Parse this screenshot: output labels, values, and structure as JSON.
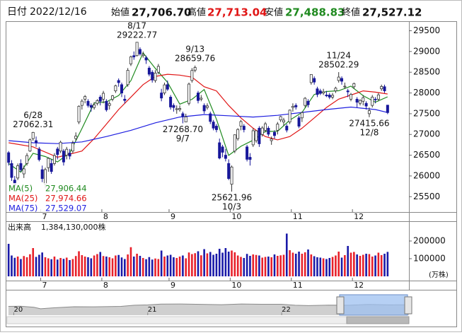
{
  "header": {
    "date_label": "日付",
    "date": "2022/12/16",
    "fields": [
      {
        "label": "始値",
        "value": "27,706.70"
      },
      {
        "label": "高値",
        "value": "27,713.04"
      },
      {
        "label": "安値",
        "value": "27,488.83"
      },
      {
        "label": "終値",
        "value": "27,527.12"
      }
    ]
  },
  "chart_data": {
    "type": "candlestick",
    "ohlc": [
      [
        26560,
        26600,
        26250,
        26326
      ],
      [
        26300,
        26380,
        25880,
        25963
      ],
      [
        25900,
        26000,
        25690,
        25771
      ],
      [
        25950,
        26300,
        25900,
        26246
      ],
      [
        26300,
        26400,
        26100,
        26149
      ],
      [
        26050,
        26250,
        25950,
        26171
      ],
      [
        26300,
        26550,
        26250,
        26491
      ],
      [
        26600,
        26900,
        26580,
        26871
      ],
      [
        26900,
        27062.31,
        26850,
        27049
      ],
      [
        26850,
        26950,
        26700,
        26804
      ],
      [
        26650,
        26700,
        26350,
        26393
      ],
      [
        26150,
        26250,
        25850,
        25935
      ],
      [
        25800,
        26200,
        25700,
        26153
      ],
      [
        26200,
        26450,
        26100,
        26423
      ],
      [
        26300,
        26400,
        26050,
        26107
      ],
      [
        26300,
        26550,
        26250,
        26490
      ],
      [
        26650,
        26700,
        26400,
        26517
      ],
      [
        26600,
        26850,
        26550,
        26812
      ],
      [
        26600,
        26650,
        26250,
        26336
      ],
      [
        26500,
        26700,
        26400,
        26643
      ],
      [
        26550,
        26650,
        26400,
        26478
      ],
      [
        26600,
        26850,
        26550,
        26788
      ],
      [
        26900,
        27050,
        26850,
        26961
      ],
      [
        27300,
        27700,
        27250,
        27680
      ],
      [
        27700,
        27850,
        27600,
        27803
      ],
      [
        27850,
        27950,
        27750,
        27914
      ],
      [
        27800,
        27850,
        27650,
        27699
      ],
      [
        27700,
        27750,
        27550,
        27655
      ],
      [
        27650,
        27780,
        27600,
        27715
      ],
      [
        27750,
        27850,
        27700,
        27815
      ],
      [
        27900,
        27950,
        27700,
        27801
      ],
      [
        27850,
        28050,
        27750,
        27993
      ],
      [
        27800,
        27850,
        27550,
        27594
      ],
      [
        27700,
        27800,
        27600,
        27741
      ],
      [
        27850,
        27950,
        27800,
        27932
      ],
      [
        28050,
        28200,
        28000,
        28175
      ],
      [
        28300,
        28350,
        28150,
        28249
      ],
      [
        28200,
        28250,
        27900,
        27999
      ],
      [
        27850,
        27950,
        27750,
        27819
      ],
      [
        28200,
        28600,
        28150,
        28546
      ],
      [
        28700,
        28900,
        28650,
        28871
      ],
      [
        28900,
        29000,
        28800,
        28868
      ],
      [
        28900,
        29222.77,
        28880,
        29222
      ],
      [
        29050,
        29100,
        28900,
        28942
      ],
      [
        28900,
        29000,
        28850,
        28930
      ],
      [
        28850,
        28900,
        28700,
        28794
      ],
      [
        28600,
        28650,
        28400,
        28452
      ],
      [
        28500,
        28550,
        28250,
        28313
      ],
      [
        28300,
        28550,
        28250,
        28479
      ],
      [
        28500,
        28700,
        28450,
        28641
      ],
      [
        28000,
        28100,
        27800,
        27878
      ],
      [
        28000,
        28250,
        27950,
        28195
      ],
      [
        28200,
        28300,
        28050,
        28091
      ],
      [
        27900,
        27950,
        27600,
        27661
      ],
      [
        27700,
        27750,
        27550,
        27650
      ],
      [
        27600,
        27700,
        27500,
        27619
      ],
      [
        27600,
        27700,
        27550,
        27626
      ],
      [
        27500,
        27550,
        27268.7,
        27430
      ],
      [
        27300,
        27500,
        27300,
        27424
      ],
      [
        27750,
        28250,
        27700,
        28214
      ],
      [
        28300,
        28600,
        28250,
        28542
      ],
      [
        28550,
        28659.76,
        28500,
        28614
      ],
      [
        28000,
        28050,
        27750,
        27818
      ],
      [
        27850,
        27950,
        27800,
        27875
      ],
      [
        27700,
        27750,
        27500,
        27567
      ],
      [
        27650,
        27750,
        27600,
        27688
      ],
      [
        27500,
        27550,
        27250,
        27313
      ],
      [
        27300,
        27350,
        27100,
        27153
      ],
      [
        27200,
        27250,
        27050,
        27115
      ],
      [
        26800,
        26900,
        26400,
        26431
      ],
      [
        26700,
        26750,
        26450,
        26571
      ],
      [
        26500,
        26650,
        26350,
        26422
      ],
      [
        26300,
        26400,
        25900,
        25937
      ],
      [
        25800,
        26250,
        25621.96,
        26215
      ],
      [
        26600,
        27000,
        26550,
        26992
      ],
      [
        26900,
        27150,
        26850,
        27120
      ],
      [
        27200,
        27350,
        27100,
        27311
      ],
      [
        27200,
        27250,
        27050,
        27116
      ],
      [
        26700,
        26750,
        26350,
        26401
      ],
      [
        26450,
        26550,
        26250,
        26397
      ],
      [
        26750,
        27150,
        26700,
        27090
      ],
      [
        26850,
        27100,
        26800,
        27090
      ],
      [
        27150,
        27200,
        26700,
        26775
      ],
      [
        27000,
        27200,
        26950,
        27156
      ],
      [
        27100,
        27300,
        27050,
        27257
      ],
      [
        27150,
        27200,
        26950,
        27006
      ],
      [
        26850,
        26950,
        26750,
        26890
      ],
      [
        27050,
        27100,
        26900,
        26974
      ],
      [
        27100,
        27300,
        27000,
        27250
      ],
      [
        27350,
        27450,
        27300,
        27431
      ],
      [
        27300,
        27400,
        27200,
        27345
      ],
      [
        27200,
        27250,
        27050,
        27105
      ],
      [
        27300,
        27600,
        27250,
        27587
      ],
      [
        27650,
        27750,
        27550,
        27678
      ],
      [
        27700,
        27750,
        27600,
        27663
      ],
      [
        27400,
        27450,
        27150,
        27199
      ],
      [
        27400,
        27550,
        27300,
        27527
      ],
      [
        27700,
        27900,
        27650,
        27872
      ],
      [
        27800,
        27850,
        27650,
        27716
      ],
      [
        28250,
        28450,
        28200,
        28446
      ],
      [
        28350,
        28400,
        28200,
        28263
      ],
      [
        28100,
        28150,
        27900,
        27963
      ],
      [
        28050,
        28100,
        27950,
        27990
      ],
      [
        28000,
        28100,
        27950,
        28028
      ],
      [
        27950,
        28050,
        27900,
        27930
      ],
      [
        27950,
        28000,
        27850,
        27899
      ],
      [
        27900,
        28000,
        27850,
        27944
      ],
      [
        28050,
        28150,
        28000,
        28115
      ],
      [
        28300,
        28502.29,
        28250,
        28383
      ],
      [
        28350,
        28400,
        28200,
        28283
      ],
      [
        28150,
        28250,
        28100,
        28162
      ],
      [
        28050,
        28100,
        27900,
        28027
      ],
      [
        27850,
        28000,
        27800,
        27968
      ],
      [
        28150,
        28250,
        28100,
        28226
      ],
      [
        27850,
        27900,
        27650,
        27777
      ],
      [
        27750,
        27850,
        27700,
        27820
      ],
      [
        27800,
        27950,
        27700,
        27885
      ],
      [
        27750,
        27800,
        27600,
        27686
      ],
      [
        27500,
        27650,
        27415.66,
        27574
      ],
      [
        27700,
        27950,
        27650,
        27901
      ],
      [
        27850,
        27900,
        27750,
        27842
      ],
      [
        27850,
        28000,
        27800,
        27954
      ],
      [
        28100,
        28200,
        28050,
        28156
      ],
      [
        28150,
        28200,
        28000,
        28051
      ],
      [
        27706.7,
        27713.04,
        27488.83,
        27527.12
      ]
    ],
    "up_color": "#ffffff",
    "down_color": "#17179a",
    "ylim": [
      25130,
      29730
    ],
    "yticks": [
      25500,
      26000,
      26500,
      27000,
      27500,
      28000,
      28500,
      29000,
      29500
    ],
    "xticks": [
      {
        "value": 11,
        "label": "7"
      },
      {
        "value": 31,
        "label": "8"
      },
      {
        "value": 53,
        "label": "9"
      },
      {
        "value": 73,
        "label": "10"
      },
      {
        "value": 93,
        "label": "11"
      },
      {
        "value": 113,
        "label": "12"
      }
    ],
    "ma": [
      {
        "name": "MA(5)",
        "color": "#1f8a1f",
        "legend_value": "27,906.44",
        "x": [
          0,
          4,
          8,
          12,
          16,
          20,
          24,
          28,
          32,
          36,
          40,
          44,
          48,
          52,
          56,
          60,
          64,
          68,
          72,
          76,
          80,
          84,
          88,
          92,
          96,
          100,
          104,
          108,
          112,
          116,
          120,
          124
        ],
        "values": [
          26300,
          26091,
          26546,
          26467,
          26338,
          26557,
          27142,
          27757,
          27784,
          27938,
          28297,
          28967,
          28594,
          28257,
          27729,
          27847,
          28083,
          27367,
          26495,
          26715,
          26863,
          27074,
          27075,
          27344,
          27531,
          27965,
          28035,
          28054,
          28165,
          27935,
          27778,
          27906.44
        ]
      },
      {
        "name": "MA(25)",
        "color": "#e01515",
        "legend_value": "27,974.66",
        "x": [
          0,
          8,
          16,
          24,
          28,
          32,
          36,
          40,
          44,
          48,
          52,
          56,
          60,
          64,
          68,
          72,
          76,
          80,
          84,
          88,
          92,
          96,
          100,
          104,
          108,
          112,
          116,
          120,
          124
        ],
        "values": [
          26800,
          26700,
          26450,
          26600,
          26900,
          27250,
          27600,
          27900,
          28200,
          28400,
          28450,
          28430,
          28380,
          28150,
          28050,
          27700,
          27400,
          27150,
          26950,
          26870,
          26950,
          27150,
          27400,
          27650,
          27850,
          27950,
          28050,
          28020,
          27974.66
        ]
      },
      {
        "name": "MA(75)",
        "color": "#1e1ee0",
        "legend_value": "27,529.07",
        "x": [
          0,
          8,
          16,
          24,
          32,
          40,
          48,
          56,
          64,
          72,
          80,
          88,
          96,
          104,
          112,
          120,
          124
        ],
        "values": [
          26850,
          26800,
          26780,
          26820,
          26950,
          27100,
          27280,
          27420,
          27480,
          27450,
          27420,
          27460,
          27530,
          27600,
          27660,
          27600,
          27529.07
        ]
      }
    ],
    "annotations": [
      {
        "date": "6/28",
        "value": 27062.31,
        "label": "27062.31",
        "x": 8
      },
      {
        "date": "8/17",
        "value": 29222.77,
        "label": "29222.77",
        "x": 42
      },
      {
        "date": "9/7",
        "value": 27268.7,
        "label": "27268.70",
        "x": 57
      },
      {
        "date": "9/13",
        "value": 28659.76,
        "label": "28659.76",
        "x": 61
      },
      {
        "date": "10/3",
        "value": 25621.96,
        "label": "25621.96",
        "x": 73
      },
      {
        "date": "11/24",
        "value": 28502.29,
        "label": "28502.29",
        "x": 108
      },
      {
        "date": "12/8",
        "value": 27415.66,
        "label": "27415.66",
        "x": 118
      }
    ],
    "volume": {
      "title": "出来高",
      "label": "1,384,130,000株",
      "unit": "(万株)",
      "up_color": "#e8202a",
      "down_color": "#1a1aa8",
      "ylim": [
        0,
        312000
      ],
      "yticks": [
        100000,
        200000
      ],
      "values": [
        184000,
        118000,
        105000,
        112000,
        98000,
        115000,
        108000,
        125000,
        160000,
        110000,
        122000,
        135000,
        108000,
        102000,
        97000,
        112000,
        95000,
        104000,
        99000,
        106000,
        92000,
        98000,
        115000,
        142000,
        120000,
        112000,
        108000,
        102000,
        118000,
        126000,
        138000,
        115000,
        112000,
        108000,
        102000,
        118000,
        121000,
        107000,
        98000,
        124000,
        165000,
        112000,
        128000,
        116000,
        104000,
        97000,
        109000,
        95000,
        101000,
        98000,
        146000,
        112000,
        118000,
        122000,
        108000,
        104000,
        112000,
        118000,
        102000,
        135000,
        126000,
        131000,
        142000,
        119000,
        154000,
        130000,
        138000,
        122000,
        128000,
        156000,
        134000,
        160000,
        140000,
        146000,
        136000,
        118000,
        110000,
        104000,
        127000,
        116000,
        124000,
        121000,
        118000,
        106000,
        110000,
        112000,
        108000,
        124000,
        116000,
        119000,
        122000,
        242000,
        148000,
        134000,
        128000,
        140000,
        128000,
        136000,
        152000,
        124000,
        114000,
        108000,
        106000,
        102000,
        98000,
        104000,
        110000,
        118000,
        140000,
        106000,
        120000,
        172000,
        134000,
        138000,
        124000,
        116000,
        122000,
        128000,
        126000,
        112000,
        118000,
        134000,
        120000,
        128000,
        138413
      ]
    },
    "navigator": {
      "x": [
        2019.96,
        2020.05,
        2020.15,
        2020.2,
        2020.3,
        2020.45,
        2020.6,
        2020.8,
        2020.9,
        2021.0,
        2021.1,
        2021.25,
        2021.4,
        2021.55,
        2021.7,
        2021.85,
        2022.0,
        2022.1,
        2022.2,
        2022.35,
        2022.5,
        2022.65,
        2022.8,
        2022.95
      ],
      "values": [
        23400,
        23800,
        21000,
        17000,
        19600,
        22500,
        22300,
        23500,
        26400,
        27400,
        29500,
        29800,
        28800,
        28000,
        29900,
        29100,
        29000,
        26500,
        25500,
        26800,
        26400,
        28500,
        27300,
        27500
      ],
      "xlim": [
        2019.95,
        2022.95
      ],
      "ylim": [
        0,
        60000
      ],
      "xticks": [
        {
          "value": 2020,
          "label": "20"
        },
        {
          "value": 2021,
          "label": "21"
        },
        {
          "value": 2022,
          "label": "22"
        }
      ]
    }
  }
}
